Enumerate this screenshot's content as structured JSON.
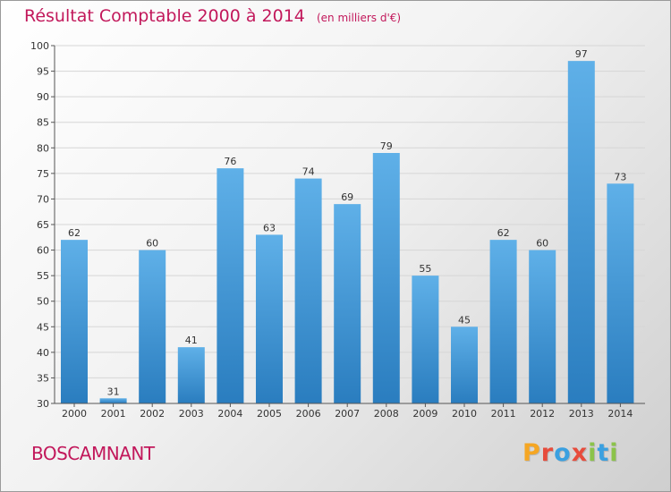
{
  "title": "Résultat Comptable 2000 à 2014",
  "subtitle": "(en milliers d'€)",
  "commune": "BOSCAMNANT",
  "brand": [
    "P",
    "r",
    "o",
    "x",
    "i",
    "t",
    "i"
  ],
  "colors": {
    "title": "#c2185b",
    "bar_top": "#5fb0e8",
    "bar_bottom": "#2a7dbf",
    "brand": [
      "#f5a623",
      "#e74c3c",
      "#3aa0e0",
      "#e74c3c",
      "#8bc34a",
      "#3aa0e0",
      "#8bc34a"
    ]
  },
  "chart_data": {
    "type": "bar",
    "categories": [
      "2000",
      "2001",
      "2002",
      "2003",
      "2004",
      "2005",
      "2006",
      "2007",
      "2008",
      "2009",
      "2010",
      "2011",
      "2012",
      "2013",
      "2014"
    ],
    "values": [
      62,
      31,
      60,
      41,
      76,
      63,
      74,
      69,
      79,
      55,
      45,
      62,
      60,
      97,
      73
    ],
    "ylim": [
      30,
      100
    ],
    "yticks": [
      30,
      35,
      40,
      45,
      50,
      55,
      60,
      65,
      70,
      75,
      80,
      85,
      90,
      95,
      100
    ],
    "grid": true,
    "title": "Résultat Comptable 2000 à 2014",
    "xlabel": "",
    "ylabel": ""
  }
}
